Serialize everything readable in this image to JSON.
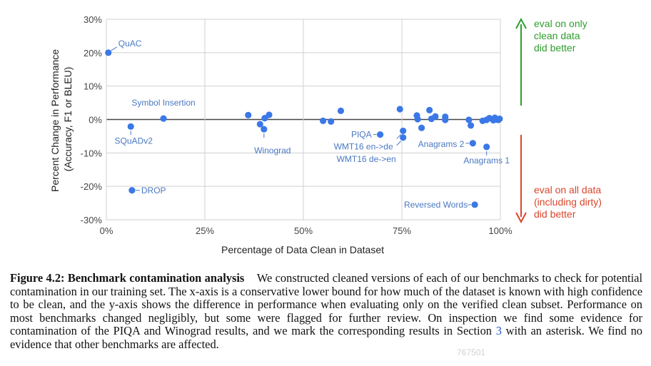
{
  "chart_data": {
    "type": "scatter",
    "title": "",
    "xlabel": "Percentage of Data Clean in Dataset",
    "ylabel_lines": [
      "Percent Change in Performance",
      "(Accuracy, F1 or BLEU)"
    ],
    "xlim": [
      0,
      100
    ],
    "ylim": [
      -30,
      30
    ],
    "x_ticks": [
      0,
      25,
      50,
      75,
      100
    ],
    "x_tick_labels": [
      "0%",
      "25%",
      "50%",
      "75%",
      "100%"
    ],
    "y_ticks": [
      30,
      20,
      10,
      0,
      -10,
      -20,
      -30
    ],
    "y_tick_labels": [
      "30%",
      "20%",
      "10%",
      "0%",
      "-10%",
      "-20%",
      "-30%"
    ],
    "grid": true,
    "point_color": "#3b78e7",
    "labeled_points": [
      {
        "name": "QuAC",
        "x": 0.5,
        "y": 20.0,
        "label_pos": "upper-right"
      },
      {
        "name": "Symbol Insertion",
        "x": 14.5,
        "y": 0.3,
        "label_pos": "upper-left"
      },
      {
        "name": "SQuADv2",
        "x": 6.2,
        "y": -2.1,
        "label_pos": "below"
      },
      {
        "name": "DROP",
        "x": 6.5,
        "y": -21.2,
        "label_pos": "right"
      },
      {
        "name": "Winograd",
        "x": 40.0,
        "y": -2.9,
        "label_pos": "below"
      },
      {
        "name": "PIQA",
        "x": 69.5,
        "y": -4.5,
        "label_pos": "left"
      },
      {
        "name": "WMT16 en->de",
        "x": 75.3,
        "y": -3.4,
        "label_pos": "lower-left"
      },
      {
        "name": "WMT16 de->en",
        "x": 75.3,
        "y": -5.4,
        "label_pos": "lower-left"
      },
      {
        "name": "Anagrams 2",
        "x": 93.0,
        "y": -7.1,
        "label_pos": "left"
      },
      {
        "name": "Anagrams 1",
        "x": 96.5,
        "y": -8.2,
        "label_pos": "below"
      },
      {
        "name": "Reversed Words",
        "x": 93.5,
        "y": -25.5,
        "label_pos": "left"
      }
    ],
    "unlabeled_points": [
      {
        "x": 36.0,
        "y": 1.3
      },
      {
        "x": 39.0,
        "y": -1.4
      },
      {
        "x": 40.2,
        "y": 0.4
      },
      {
        "x": 41.3,
        "y": 1.4
      },
      {
        "x": 55.0,
        "y": -0.4
      },
      {
        "x": 57.0,
        "y": -0.6
      },
      {
        "x": 59.5,
        "y": 2.6
      },
      {
        "x": 74.5,
        "y": 3.1
      },
      {
        "x": 78.8,
        "y": 1.2
      },
      {
        "x": 79.0,
        "y": 0.1
      },
      {
        "x": 80.0,
        "y": -2.5
      },
      {
        "x": 82.0,
        "y": 2.8
      },
      {
        "x": 82.5,
        "y": 0.2
      },
      {
        "x": 83.5,
        "y": 0.9
      },
      {
        "x": 86.0,
        "y": 0.8
      },
      {
        "x": 86.0,
        "y": -0.1
      },
      {
        "x": 92.0,
        "y": -0.1
      },
      {
        "x": 92.5,
        "y": -1.8
      },
      {
        "x": 95.5,
        "y": -0.4
      },
      {
        "x": 96.5,
        "y": -0.1
      },
      {
        "x": 97.2,
        "y": 0.4
      },
      {
        "x": 98.2,
        "y": -0.2
      },
      {
        "x": 98.6,
        "y": 0.5
      },
      {
        "x": 99.0,
        "y": 0.0
      },
      {
        "x": 99.5,
        "y": -0.1
      },
      {
        "x": 99.8,
        "y": 0.2
      }
    ],
    "annotations": {
      "top": {
        "lines": [
          "eval on only",
          "clean data",
          "did better"
        ],
        "color": "#2e9e2e"
      },
      "bottom": {
        "lines": [
          "eval on all data",
          "(including dirty)",
          "did better"
        ],
        "color": "#d9462b"
      }
    }
  },
  "caption": {
    "title": "Figure 4.2: Benchmark contamination analysis",
    "text_before_ref": "We constructed cleaned versions of each of our benchmarks to check for potential contamination in our training set. The x-axis is a conservative lower bound for how much of the dataset is known with high confidence to be clean, and the y-axis shows the difference in performance when evaluating only on the verified clean subset. Performance on most benchmarks changed negligibly, but some were flagged for further review. On inspection we find some evidence for contamination of the PIQA and Winograd results, and we mark the corresponding results in Section",
    "section_ref": "3",
    "text_after_ref": "with an asterisk. We find no evidence that other benchmarks are affected."
  },
  "watermark": "767501"
}
